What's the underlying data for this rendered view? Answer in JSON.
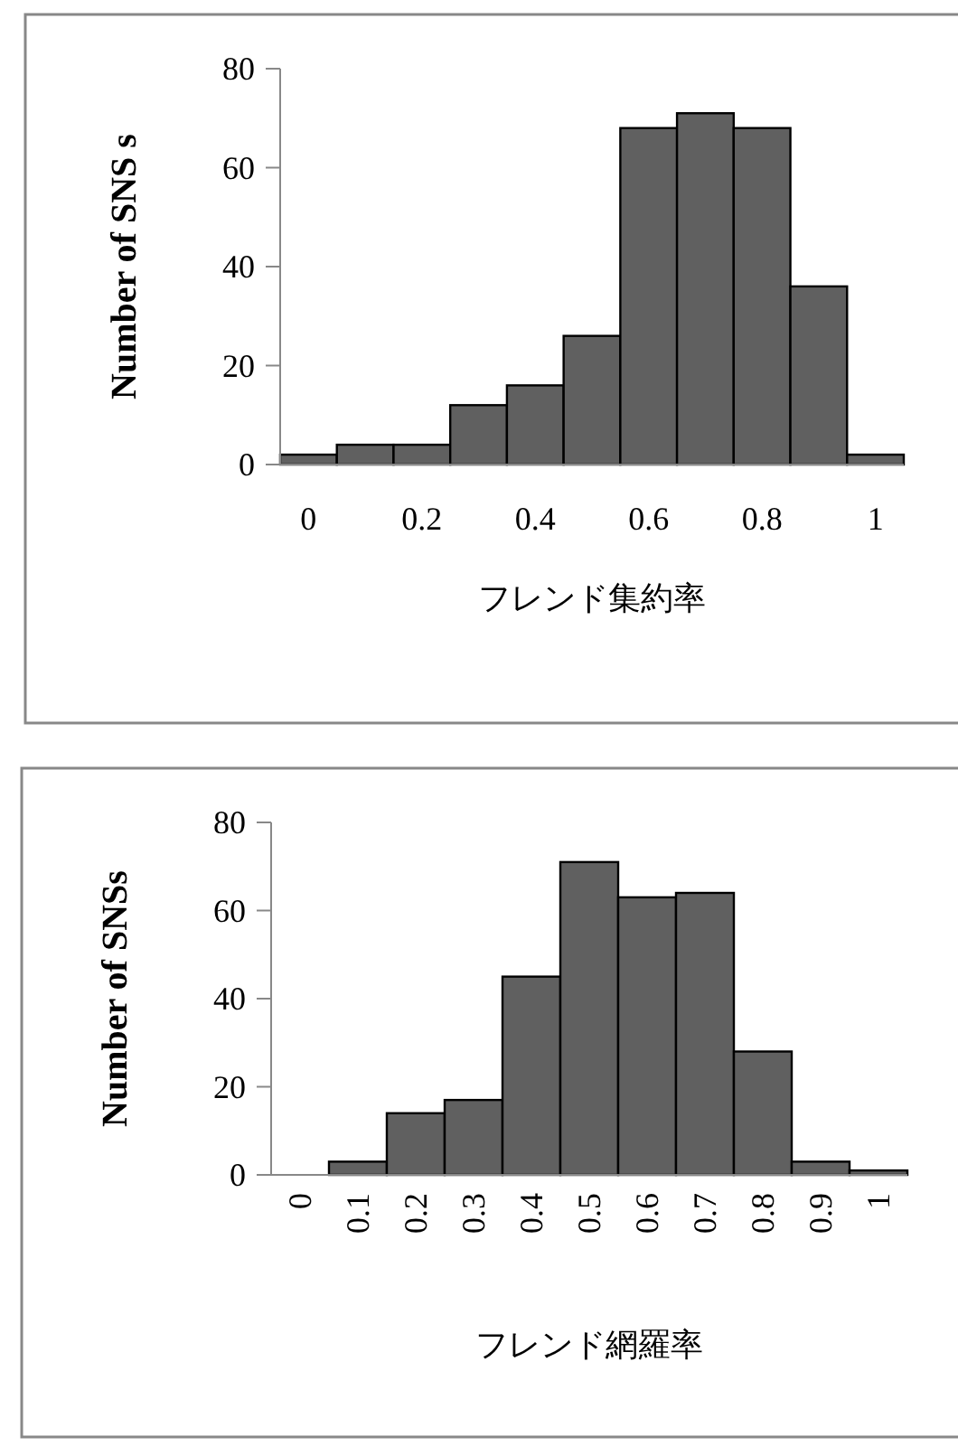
{
  "chart_data": [
    {
      "type": "bar",
      "categories": [
        "0",
        null,
        "0.2",
        null,
        "0.4",
        null,
        "0.6",
        null,
        "0.8",
        null,
        "1"
      ],
      "values": [
        2,
        4,
        4,
        12,
        16,
        26,
        68,
        71,
        68,
        36,
        2
      ],
      "color": "#606060",
      "ylim": [
        0,
        80
      ],
      "yticks": [
        0,
        20,
        40,
        60,
        80
      ],
      "xlabel": "フレンド集約率",
      "ylabel": "Number of SNS s"
    },
    {
      "type": "bar",
      "categories": [
        "0",
        "0.1",
        "0.2",
        "0.3",
        "0.4",
        "0.5",
        "0.6",
        "0.7",
        "0.8",
        "0.9",
        "1"
      ],
      "values": [
        0,
        3,
        14,
        17,
        45,
        71,
        63,
        64,
        28,
        3,
        1
      ],
      "color": "#606060",
      "ylim": [
        0,
        80
      ],
      "yticks": [
        0,
        20,
        40,
        60,
        80
      ],
      "xlabel": "フレンド網羅率",
      "ylabel": "Number of SNSs"
    }
  ]
}
